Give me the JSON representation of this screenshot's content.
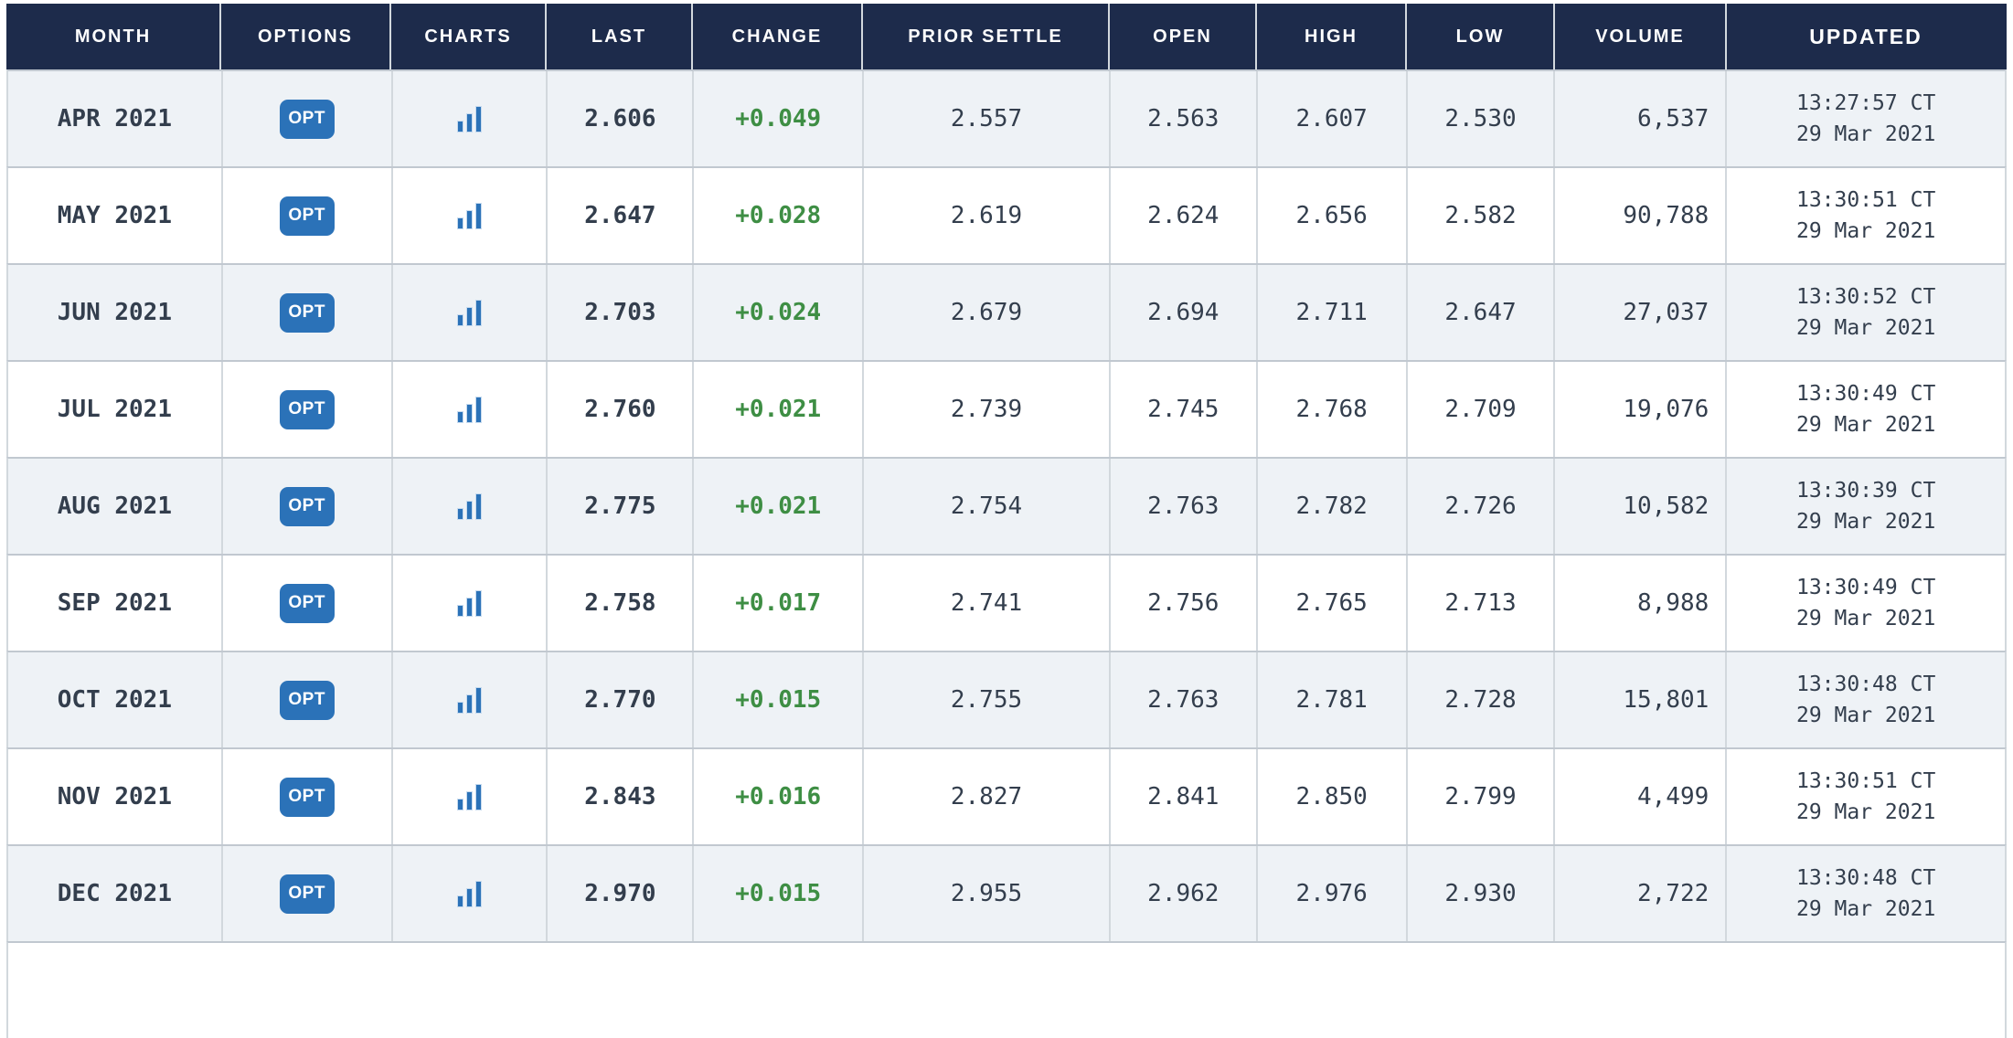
{
  "table": {
    "columns": [
      {
        "id": "month",
        "label": "MONTH"
      },
      {
        "id": "options",
        "label": "OPTIONS"
      },
      {
        "id": "charts",
        "label": "CHARTS"
      },
      {
        "id": "last",
        "label": "LAST"
      },
      {
        "id": "change",
        "label": "CHANGE"
      },
      {
        "id": "prior_settle",
        "label": "PRIOR SETTLE"
      },
      {
        "id": "open",
        "label": "OPEN"
      },
      {
        "id": "high",
        "label": "HIGH"
      },
      {
        "id": "low",
        "label": "LOW"
      },
      {
        "id": "volume",
        "label": "VOLUME"
      },
      {
        "id": "updated",
        "label": "UPDATED"
      }
    ],
    "options_button_label": "OPT",
    "icons": {
      "charts": "bar-chart-icon"
    },
    "rows": [
      {
        "month": "APR 2021",
        "last": "2.606",
        "change": "+0.049",
        "prior_settle": "2.557",
        "open": "2.563",
        "high": "2.607",
        "low": "2.530",
        "volume": "6,537",
        "updated_time": "13:27:57 CT",
        "updated_date": "29 Mar 2021"
      },
      {
        "month": "MAY 2021",
        "last": "2.647",
        "change": "+0.028",
        "prior_settle": "2.619",
        "open": "2.624",
        "high": "2.656",
        "low": "2.582",
        "volume": "90,788",
        "updated_time": "13:30:51 CT",
        "updated_date": "29 Mar 2021"
      },
      {
        "month": "JUN 2021",
        "last": "2.703",
        "change": "+0.024",
        "prior_settle": "2.679",
        "open": "2.694",
        "high": "2.711",
        "low": "2.647",
        "volume": "27,037",
        "updated_time": "13:30:52 CT",
        "updated_date": "29 Mar 2021"
      },
      {
        "month": "JUL 2021",
        "last": "2.760",
        "change": "+0.021",
        "prior_settle": "2.739",
        "open": "2.745",
        "high": "2.768",
        "low": "2.709",
        "volume": "19,076",
        "updated_time": "13:30:49 CT",
        "updated_date": "29 Mar 2021"
      },
      {
        "month": "AUG 2021",
        "last": "2.775",
        "change": "+0.021",
        "prior_settle": "2.754",
        "open": "2.763",
        "high": "2.782",
        "low": "2.726",
        "volume": "10,582",
        "updated_time": "13:30:39 CT",
        "updated_date": "29 Mar 2021"
      },
      {
        "month": "SEP 2021",
        "last": "2.758",
        "change": "+0.017",
        "prior_settle": "2.741",
        "open": "2.756",
        "high": "2.765",
        "low": "2.713",
        "volume": "8,988",
        "updated_time": "13:30:49 CT",
        "updated_date": "29 Mar 2021"
      },
      {
        "month": "OCT 2021",
        "last": "2.770",
        "change": "+0.015",
        "prior_settle": "2.755",
        "open": "2.763",
        "high": "2.781",
        "low": "2.728",
        "volume": "15,801",
        "updated_time": "13:30:48 CT",
        "updated_date": "29 Mar 2021"
      },
      {
        "month": "NOV 2021",
        "last": "2.843",
        "change": "+0.016",
        "prior_settle": "2.827",
        "open": "2.841",
        "high": "2.850",
        "low": "2.799",
        "volume": "4,499",
        "updated_time": "13:30:51 CT",
        "updated_date": "29 Mar 2021"
      },
      {
        "month": "DEC 2021",
        "last": "2.970",
        "change": "+0.015",
        "prior_settle": "2.955",
        "open": "2.962",
        "high": "2.976",
        "low": "2.930",
        "volume": "2,722",
        "updated_time": "13:30:48 CT",
        "updated_date": "29 Mar 2021"
      }
    ]
  },
  "colors": {
    "header_bg": "#1d2b4b",
    "row_alt_bg": "#eef2f6",
    "row_bg": "#ffffff",
    "accent_blue": "#2b72b8",
    "change_green": "#3e8e44",
    "text": "#333e4d"
  }
}
